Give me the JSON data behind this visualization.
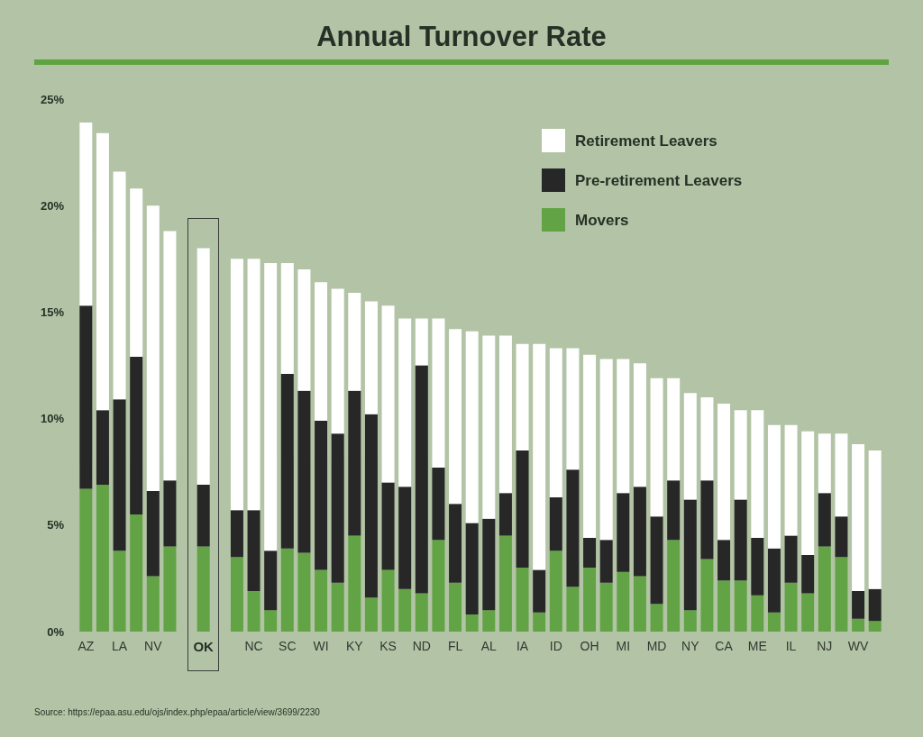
{
  "chart_data": {
    "type": "bar",
    "title": "Annual Turnover Rate",
    "stacked": true,
    "legend": "top right",
    "grid": false,
    "categories": [
      "AZ",
      null,
      "LA",
      null,
      "NV",
      null,
      null,
      "OK",
      null,
      null,
      "NC",
      null,
      "SC",
      null,
      "WI",
      null,
      "KY",
      null,
      "KS",
      null,
      "ND",
      null,
      "FL",
      null,
      "AL",
      null,
      "IA",
      null,
      "ID",
      null,
      "OH",
      null,
      "MI",
      null,
      "MD",
      null,
      "NY",
      null,
      "CA",
      null,
      "ME",
      null,
      "IL",
      null,
      "NJ",
      null,
      "WV",
      null
    ],
    "series": [
      {
        "name": "Movers",
        "color": "#62a345",
        "values": [
          6.7,
          6.9,
          3.8,
          5.5,
          2.6,
          4.0,
          null,
          4.0,
          null,
          3.5,
          1.9,
          1.0,
          3.9,
          3.7,
          2.9,
          2.3,
          4.5,
          1.6,
          2.9,
          2.0,
          1.8,
          4.3,
          2.3,
          0.8,
          1.0,
          4.5,
          3.0,
          0.9,
          3.8,
          2.1,
          3.0,
          2.3,
          2.8,
          2.6,
          1.3,
          4.3,
          1.0,
          3.4,
          2.4,
          2.4,
          1.7,
          0.9,
          2.3,
          1.8,
          4.0,
          3.5,
          0.6,
          0.5
        ]
      },
      {
        "name": "Pre-retirement Leavers",
        "color": "#272727",
        "values": [
          8.6,
          3.5,
          7.1,
          7.4,
          4.0,
          3.1,
          null,
          2.9,
          null,
          2.2,
          3.8,
          2.8,
          8.2,
          7.6,
          7.0,
          7.0,
          6.8,
          8.6,
          4.1,
          4.8,
          10.7,
          3.4,
          3.7,
          4.3,
          4.3,
          2.0,
          5.5,
          2.0,
          2.5,
          5.5,
          1.4,
          2.0,
          3.7,
          4.2,
          4.1,
          2.8,
          5.2,
          3.7,
          1.9,
          3.8,
          2.7,
          3.0,
          2.2,
          1.8,
          2.5,
          1.9,
          1.3,
          1.5
        ]
      },
      {
        "name": "Retirement Leavers",
        "color": "#ffffff",
        "values": [
          8.6,
          13.0,
          10.7,
          7.9,
          13.4,
          11.7,
          null,
          11.1,
          null,
          11.8,
          11.8,
          13.5,
          5.2,
          5.7,
          6.5,
          6.8,
          4.6,
          5.3,
          8.3,
          7.9,
          2.2,
          7.0,
          8.2,
          9.0,
          8.6,
          7.4,
          5.0,
          10.6,
          7.0,
          5.7,
          8.6,
          8.5,
          6.3,
          5.8,
          6.5,
          4.8,
          5.0,
          3.9,
          6.4,
          4.2,
          6.0,
          5.8,
          5.2,
          5.8,
          2.8,
          3.9,
          6.9,
          6.5
        ]
      }
    ],
    "ylim": [
      0,
      25
    ],
    "yticks": [
      {
        "value": 0,
        "label": "0%"
      },
      {
        "value": 5,
        "label": "5%"
      },
      {
        "value": 10,
        "label": "10%"
      },
      {
        "value": 15,
        "label": "15%"
      },
      {
        "value": 20,
        "label": "20%"
      },
      {
        "value": 25,
        "label": "25%"
      }
    ],
    "annotations": [
      "Source: https://epaa.asu.edu/ojs/index.php/epaa/article/view/3699/2230"
    ]
  }
}
